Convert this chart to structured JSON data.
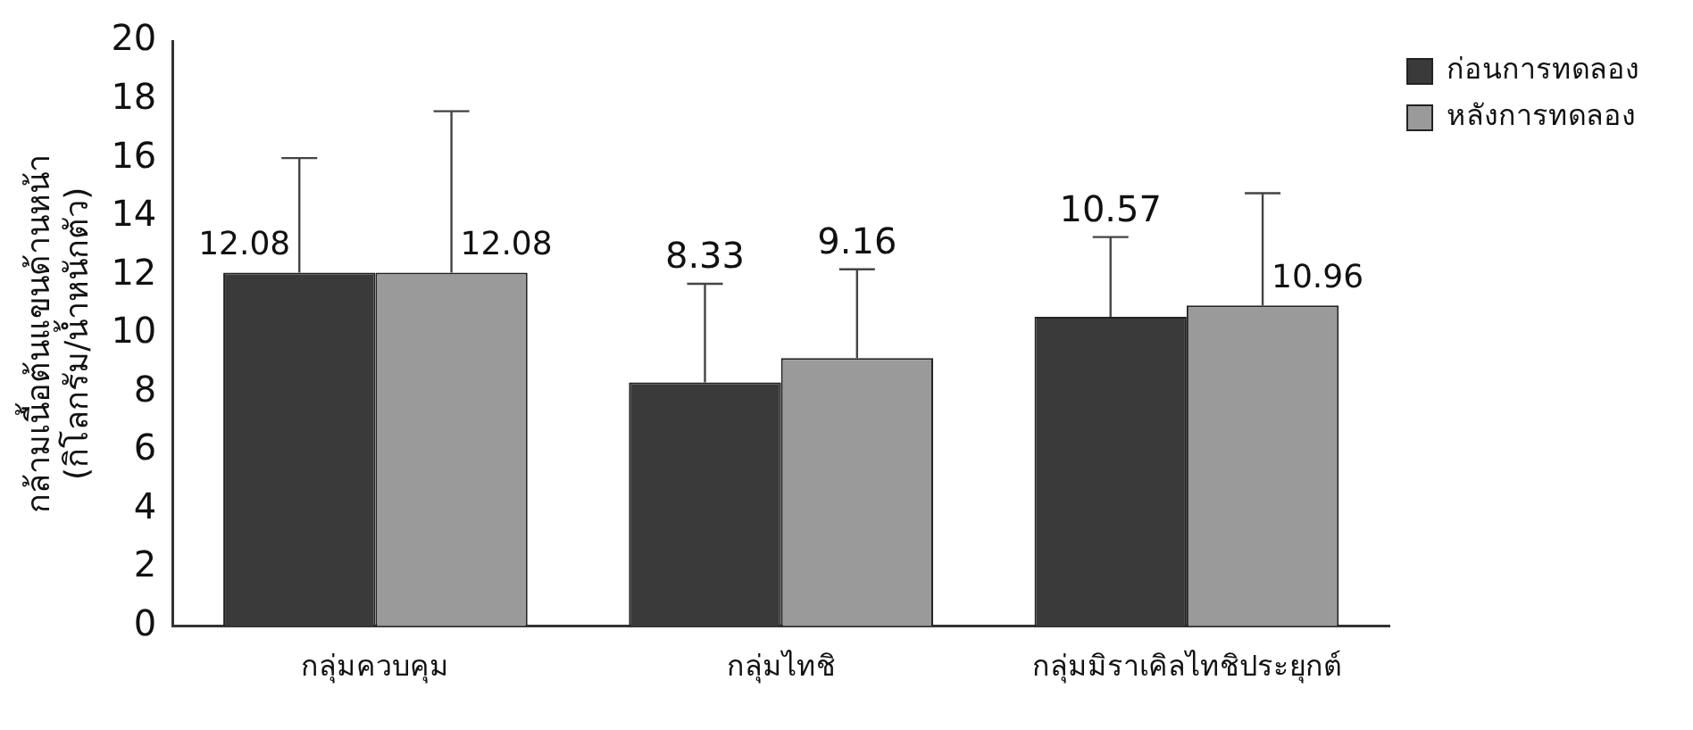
{
  "chart_data": {
    "type": "bar",
    "ylabel": "กล้ามเนื้อต้นแขนด้านหน้า\n(กิโลกรัม/น้ำหนักตัว)",
    "categories": [
      "กลุ่มควบคุม",
      "กลุ่มไทชิ",
      "กลุ่มมิราเคิลไทชิประยุกต์"
    ],
    "series": [
      {
        "name": "ก่อนการทดลอง",
        "color": "#3a3a3a",
        "values": [
          12.08,
          8.33,
          10.57
        ],
        "errors": [
          [
            12.08,
            16.0
          ],
          [
            8.33,
            11.7
          ],
          [
            10.57,
            13.3
          ]
        ]
      },
      {
        "name": "หลังการทดลอง",
        "color": "#9a9a9a",
        "values": [
          12.08,
          9.16,
          10.96
        ],
        "errors": [
          [
            12.08,
            17.6
          ],
          [
            9.16,
            12.2
          ],
          [
            10.96,
            14.8
          ]
        ]
      }
    ],
    "ylim": [
      0,
      20
    ],
    "yticks": [
      0,
      2,
      4,
      6,
      8,
      10,
      12,
      14,
      16,
      18,
      20
    ],
    "grid": false,
    "legend": "top right",
    "data_labels": true
  }
}
